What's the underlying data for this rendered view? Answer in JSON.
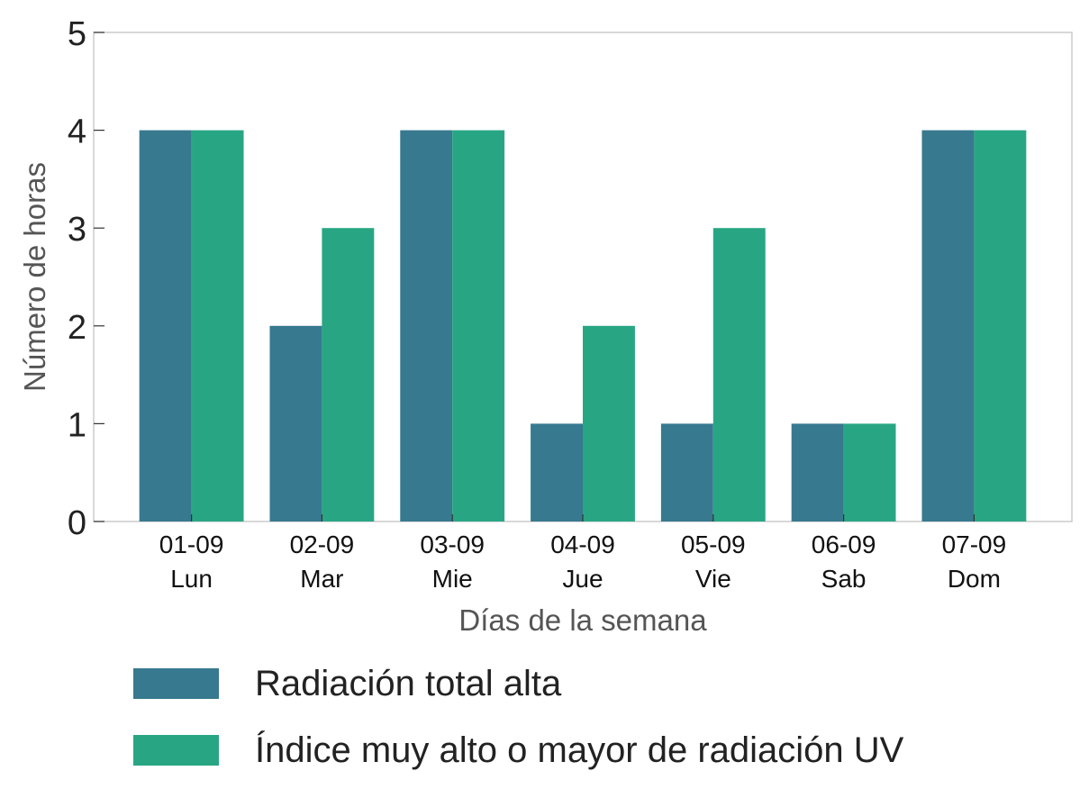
{
  "chart_data": {
    "type": "bar",
    "xlabel": "Días de la semana",
    "ylabel": "Número de horas",
    "ylim": [
      0,
      5
    ],
    "yticks": [
      0,
      1,
      2,
      3,
      4,
      5
    ],
    "grid": false,
    "legend_position": "bottom",
    "categories": [
      [
        "01-09",
        "Lun"
      ],
      [
        "02-09",
        "Mar"
      ],
      [
        "03-09",
        "Mie"
      ],
      [
        "04-09",
        "Jue"
      ],
      [
        "05-09",
        "Vie"
      ],
      [
        "06-09",
        "Sab"
      ],
      [
        "07-09",
        "Dom"
      ]
    ],
    "series": [
      {
        "name": "Radiación total alta",
        "color": "#37798f",
        "values": [
          4,
          2,
          4,
          1,
          1,
          1,
          4
        ]
      },
      {
        "name": "Índice muy alto o mayor de radiación UV",
        "color": "#28a684",
        "values": [
          4,
          3,
          4,
          2,
          3,
          1,
          4
        ]
      }
    ]
  }
}
